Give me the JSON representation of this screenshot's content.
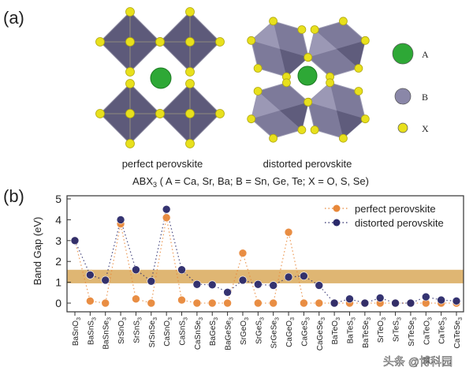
{
  "panel_a": {
    "label": "(a)",
    "perfect_caption": "perfect perovskite",
    "distorted_caption": "distorted perovskite",
    "formula_prefix": "ABX",
    "formula_sub": "3",
    "formula_rest": " ( A = Ca, Sr, Ba; B = Sn, Ge, Te; X = O, S, Se)",
    "legend": [
      {
        "label": "A",
        "color": "#2ea836"
      },
      {
        "label": "B",
        "color": "#8a87a8"
      },
      {
        "label": "X",
        "color": "#e8e01c"
      }
    ],
    "octahedron_color": "#5d5a7a"
  },
  "panel_b": {
    "label": "(b)"
  },
  "watermark": "头条 @博科园",
  "chart_data": {
    "type": "line",
    "ylabel": "Band Gap (eV)",
    "xlabel": "",
    "ylim": [
      -0.4,
      5
    ],
    "yticks": [
      0,
      1,
      2,
      3,
      4,
      5
    ],
    "legend_position": "top-right",
    "highlight_band": {
      "from": 0.95,
      "to": 1.6,
      "color": "#d9a95b"
    },
    "categories": [
      "BaSnO3",
      "BaSnS3",
      "BaSnSe3",
      "SrSnO3",
      "SrSnS3",
      "SrSnSe3",
      "CaSnO3",
      "CaSnS3",
      "CaSnSe3",
      "BaGeS3",
      "BaGeSe3",
      "SrGeO3",
      "SrGeS3",
      "SrGeSe3",
      "CaGeO3",
      "CaGeS3",
      "CaGeSe3",
      "BaTeO3",
      "BaTeS3",
      "BaTeSe3",
      "SrTeO3",
      "SrTeS3",
      "SrTeSe3",
      "CaTeO3",
      "CaTeS3",
      "CaTeSe3"
    ],
    "series": [
      {
        "name": "perfect perovskite",
        "color": "#e8883a",
        "values": [
          3.0,
          0.1,
          0.0,
          3.8,
          0.2,
          0.0,
          4.1,
          0.15,
          0.0,
          0.0,
          0.0,
          2.4,
          0.0,
          0.0,
          3.4,
          0.0,
          0.0,
          0.0,
          0.0,
          0.0,
          0.0,
          0.0,
          0.0,
          0.0,
          0.0,
          0.0
        ]
      },
      {
        "name": "distorted perovskite",
        "color": "#2b2a6b",
        "values": [
          3.0,
          1.35,
          1.1,
          4.0,
          1.6,
          1.05,
          4.5,
          1.6,
          0.9,
          0.88,
          0.52,
          1.1,
          0.9,
          0.85,
          1.25,
          1.3,
          0.85,
          0.0,
          0.2,
          0.0,
          0.25,
          0.0,
          0.0,
          0.3,
          0.15,
          0.1
        ]
      }
    ]
  }
}
